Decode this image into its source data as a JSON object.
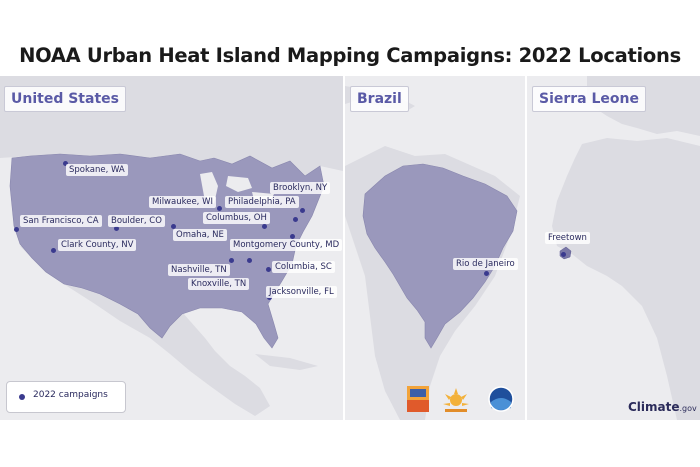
{
  "title": "NOAA Urban Heat Island Mapping Campaigns: 2022 Locations",
  "panels": {
    "us": "United States",
    "brazil": "Brazil",
    "sierra_leone": "Sierra Leone"
  },
  "cities": {
    "spokane": "Spokane, WA",
    "brooklyn": "Brooklyn, NY",
    "milwaukee": "Milwaukee, WI",
    "philadelphia": "Philadelphia, PA",
    "columbus": "Columbus, OH",
    "san_francisco": "San Francisco, CA",
    "boulder": "Boulder, CO",
    "omaha": "Omaha, NE",
    "clark_county": "Clark County, NV",
    "montgomery": "Montgomery County, MD",
    "nashville": "Nashville, TN",
    "columbia": "Columbia, SC",
    "knoxville": "Knoxville, TN",
    "jacksonville": "Jacksonville, FL",
    "rio": "Rio de Janeiro",
    "freetown": "Freetown"
  },
  "legend": {
    "label": "2022 campaigns"
  },
  "logos": {
    "nihhis": "NIHHIS",
    "heatwatch": "Heat Watch",
    "noaa": "NOAA"
  },
  "branding": {
    "name": "Climate",
    "suffix": ".gov"
  },
  "colors": {
    "highlight": "#9a98bc",
    "marker": "#3a3a8e",
    "label": "#5a5aa6",
    "land": "#e1e1e5",
    "water": "#ececef"
  }
}
